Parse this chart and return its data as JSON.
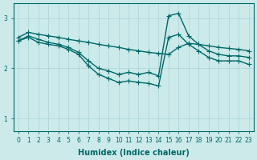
{
  "xlabel": "Humidex (Indice chaleur)",
  "bg_color": "#cceaea",
  "grid_color": "#aad4d4",
  "line_color": "#006868",
  "xlim": [
    -0.5,
    23.5
  ],
  "ylim": [
    0.75,
    3.3
  ],
  "yticks": [
    1,
    2,
    3
  ],
  "xticks": [
    0,
    1,
    2,
    3,
    4,
    5,
    6,
    7,
    8,
    9,
    10,
    11,
    12,
    13,
    14,
    15,
    16,
    17,
    18,
    19,
    20,
    21,
    22,
    23
  ],
  "line1_x": [
    0,
    1,
    2,
    3,
    4,
    5,
    6,
    7,
    8,
    9,
    10,
    11,
    12,
    13,
    14,
    15,
    16,
    17,
    18,
    19,
    20,
    21,
    22,
    23
  ],
  "line1_y": [
    2.62,
    2.72,
    2.68,
    2.65,
    2.62,
    2.58,
    2.55,
    2.52,
    2.48,
    2.45,
    2.42,
    2.38,
    2.35,
    2.32,
    2.3,
    2.28,
    2.42,
    2.5,
    2.48,
    2.45,
    2.42,
    2.4,
    2.38,
    2.35
  ],
  "line2_x": [
    0,
    1,
    2,
    3,
    4,
    5,
    6,
    7,
    8,
    9,
    10,
    11,
    12,
    13,
    14,
    15,
    16,
    17,
    18,
    19,
    20,
    21,
    22,
    23
  ],
  "line2_y": [
    2.55,
    2.65,
    2.58,
    2.52,
    2.48,
    2.42,
    2.32,
    2.15,
    2.0,
    1.95,
    1.88,
    1.92,
    1.88,
    1.92,
    1.85,
    3.05,
    3.1,
    2.65,
    2.48,
    2.35,
    2.28,
    2.25,
    2.25,
    2.22
  ],
  "line3_x": [
    0,
    1,
    2,
    3,
    4,
    5,
    6,
    7,
    8,
    9,
    10,
    11,
    12,
    13,
    14,
    15,
    16,
    17,
    18,
    19,
    20,
    21,
    22,
    23
  ],
  "line3_y": [
    2.55,
    2.62,
    2.52,
    2.48,
    2.45,
    2.38,
    2.28,
    2.05,
    1.88,
    1.8,
    1.72,
    1.75,
    1.72,
    1.7,
    1.65,
    2.62,
    2.68,
    2.48,
    2.35,
    2.22,
    2.15,
    2.15,
    2.15,
    2.08
  ],
  "marker": "+",
  "markersize": 4,
  "linewidth": 1.0,
  "label_fontsize": 7,
  "tick_fontsize": 5.5
}
